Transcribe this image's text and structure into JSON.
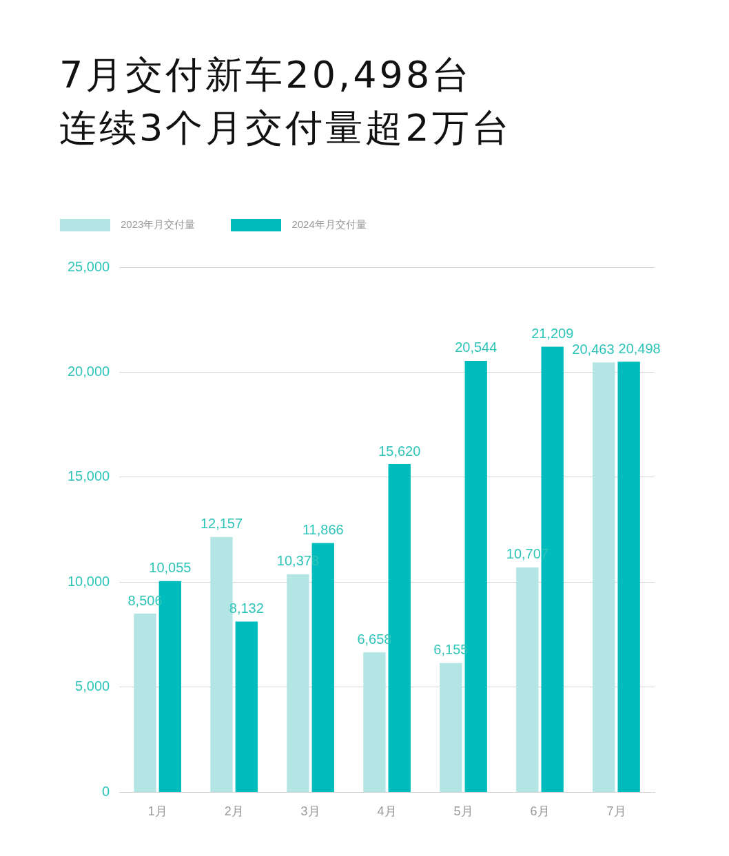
{
  "chart_data": {
    "type": "bar",
    "title": "7月交付新车20,498台",
    "subtitle": "连续3个月交付量超2万台",
    "categories": [
      "1月",
      "2月",
      "3月",
      "4月",
      "5月",
      "6月",
      "7月"
    ],
    "series": [
      {
        "name": "2023年月交付量",
        "color": "#b3e5e5",
        "values": [
          8506,
          12157,
          10378,
          6658,
          6155,
          10707,
          20463
        ],
        "value_labels": [
          "8,506",
          "12,157",
          "10,378",
          "6,658",
          "6,155",
          "10,707",
          "20,463"
        ]
      },
      {
        "name": "2024年月交付量",
        "color": "#00bcbc",
        "values": [
          10055,
          8132,
          11866,
          15620,
          20544,
          21209,
          20498
        ],
        "value_labels": [
          "10,055",
          "8,132",
          "11,866",
          "15,620",
          "20,544",
          "21,209",
          "20,498"
        ]
      }
    ],
    "ylim": [
      0,
      25000
    ],
    "yticks": [
      {
        "value": 0,
        "label": "0"
      },
      {
        "value": 5000,
        "label": "5,000"
      },
      {
        "value": 10000,
        "label": "10,000"
      },
      {
        "value": 15000,
        "label": "15,000"
      },
      {
        "value": 20000,
        "label": "20,000"
      },
      {
        "value": 25000,
        "label": "25,000"
      }
    ],
    "grid": "y",
    "legend": "top left"
  }
}
